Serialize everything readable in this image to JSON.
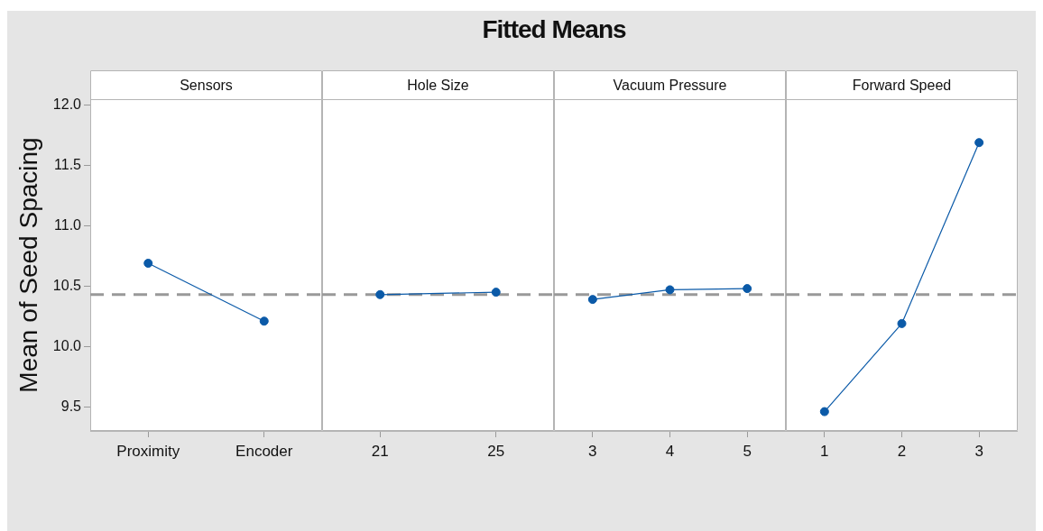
{
  "chart_data": [
    {
      "type": "other",
      "title": "Fitted Means"
    },
    {
      "type": "line",
      "subtitle": "Sensors",
      "ylabel": "Mean of Seed Spacing",
      "categories": [
        "Proximity",
        "Encoder"
      ],
      "values": [
        10.69,
        10.21
      ],
      "color": "#0b5aa8",
      "marker": "circle",
      "line_style": "solid",
      "ylim": [
        9.3,
        12.05
      ],
      "yticks": [
        9.5,
        {
          "value": 10,
          "label": "10.0"
        },
        10.5,
        {
          "value": 11,
          "label": "11.0"
        },
        11.5,
        {
          "value": 12,
          "label": "12.0"
        }
      ],
      "ref_lines": [
        {
          "axis": "y",
          "value": 10.43,
          "color": "#999999",
          "line_style": "dashed"
        }
      ]
    },
    {
      "type": "line",
      "subtitle": "Hole Size",
      "categories": [
        "21",
        "25"
      ],
      "values": [
        10.43,
        10.45
      ],
      "color": "#0b5aa8",
      "marker": "circle",
      "line_style": "solid",
      "ylim": [
        9.3,
        12.05
      ],
      "tick_labels": "x",
      "ref_lines": [
        {
          "axis": "y",
          "value": 10.43,
          "color": "#999999",
          "line_style": "dashed"
        }
      ]
    },
    {
      "type": "line",
      "subtitle": "Vacuum Pressure",
      "categories": [
        "3",
        "4",
        "5"
      ],
      "values": [
        10.39,
        10.47,
        10.48
      ],
      "color": "#0b5aa8",
      "marker": "circle",
      "line_style": "solid",
      "ylim": [
        9.3,
        12.05
      ],
      "tick_labels": "x",
      "ref_lines": [
        {
          "axis": "y",
          "value": 10.43,
          "color": "#999999",
          "line_style": "dashed"
        }
      ]
    },
    {
      "type": "line",
      "subtitle": "Forward Speed",
      "categories": [
        "1",
        "2",
        "3"
      ],
      "values": [
        9.46,
        10.19,
        11.69
      ],
      "color": "#0b5aa8",
      "marker": "circle",
      "line_style": "solid",
      "ylim": [
        9.3,
        12.05
      ],
      "tick_labels": "x",
      "ref_lines": [
        {
          "axis": "y",
          "value": 10.43,
          "color": "#999999",
          "line_style": "dashed"
        }
      ]
    }
  ]
}
